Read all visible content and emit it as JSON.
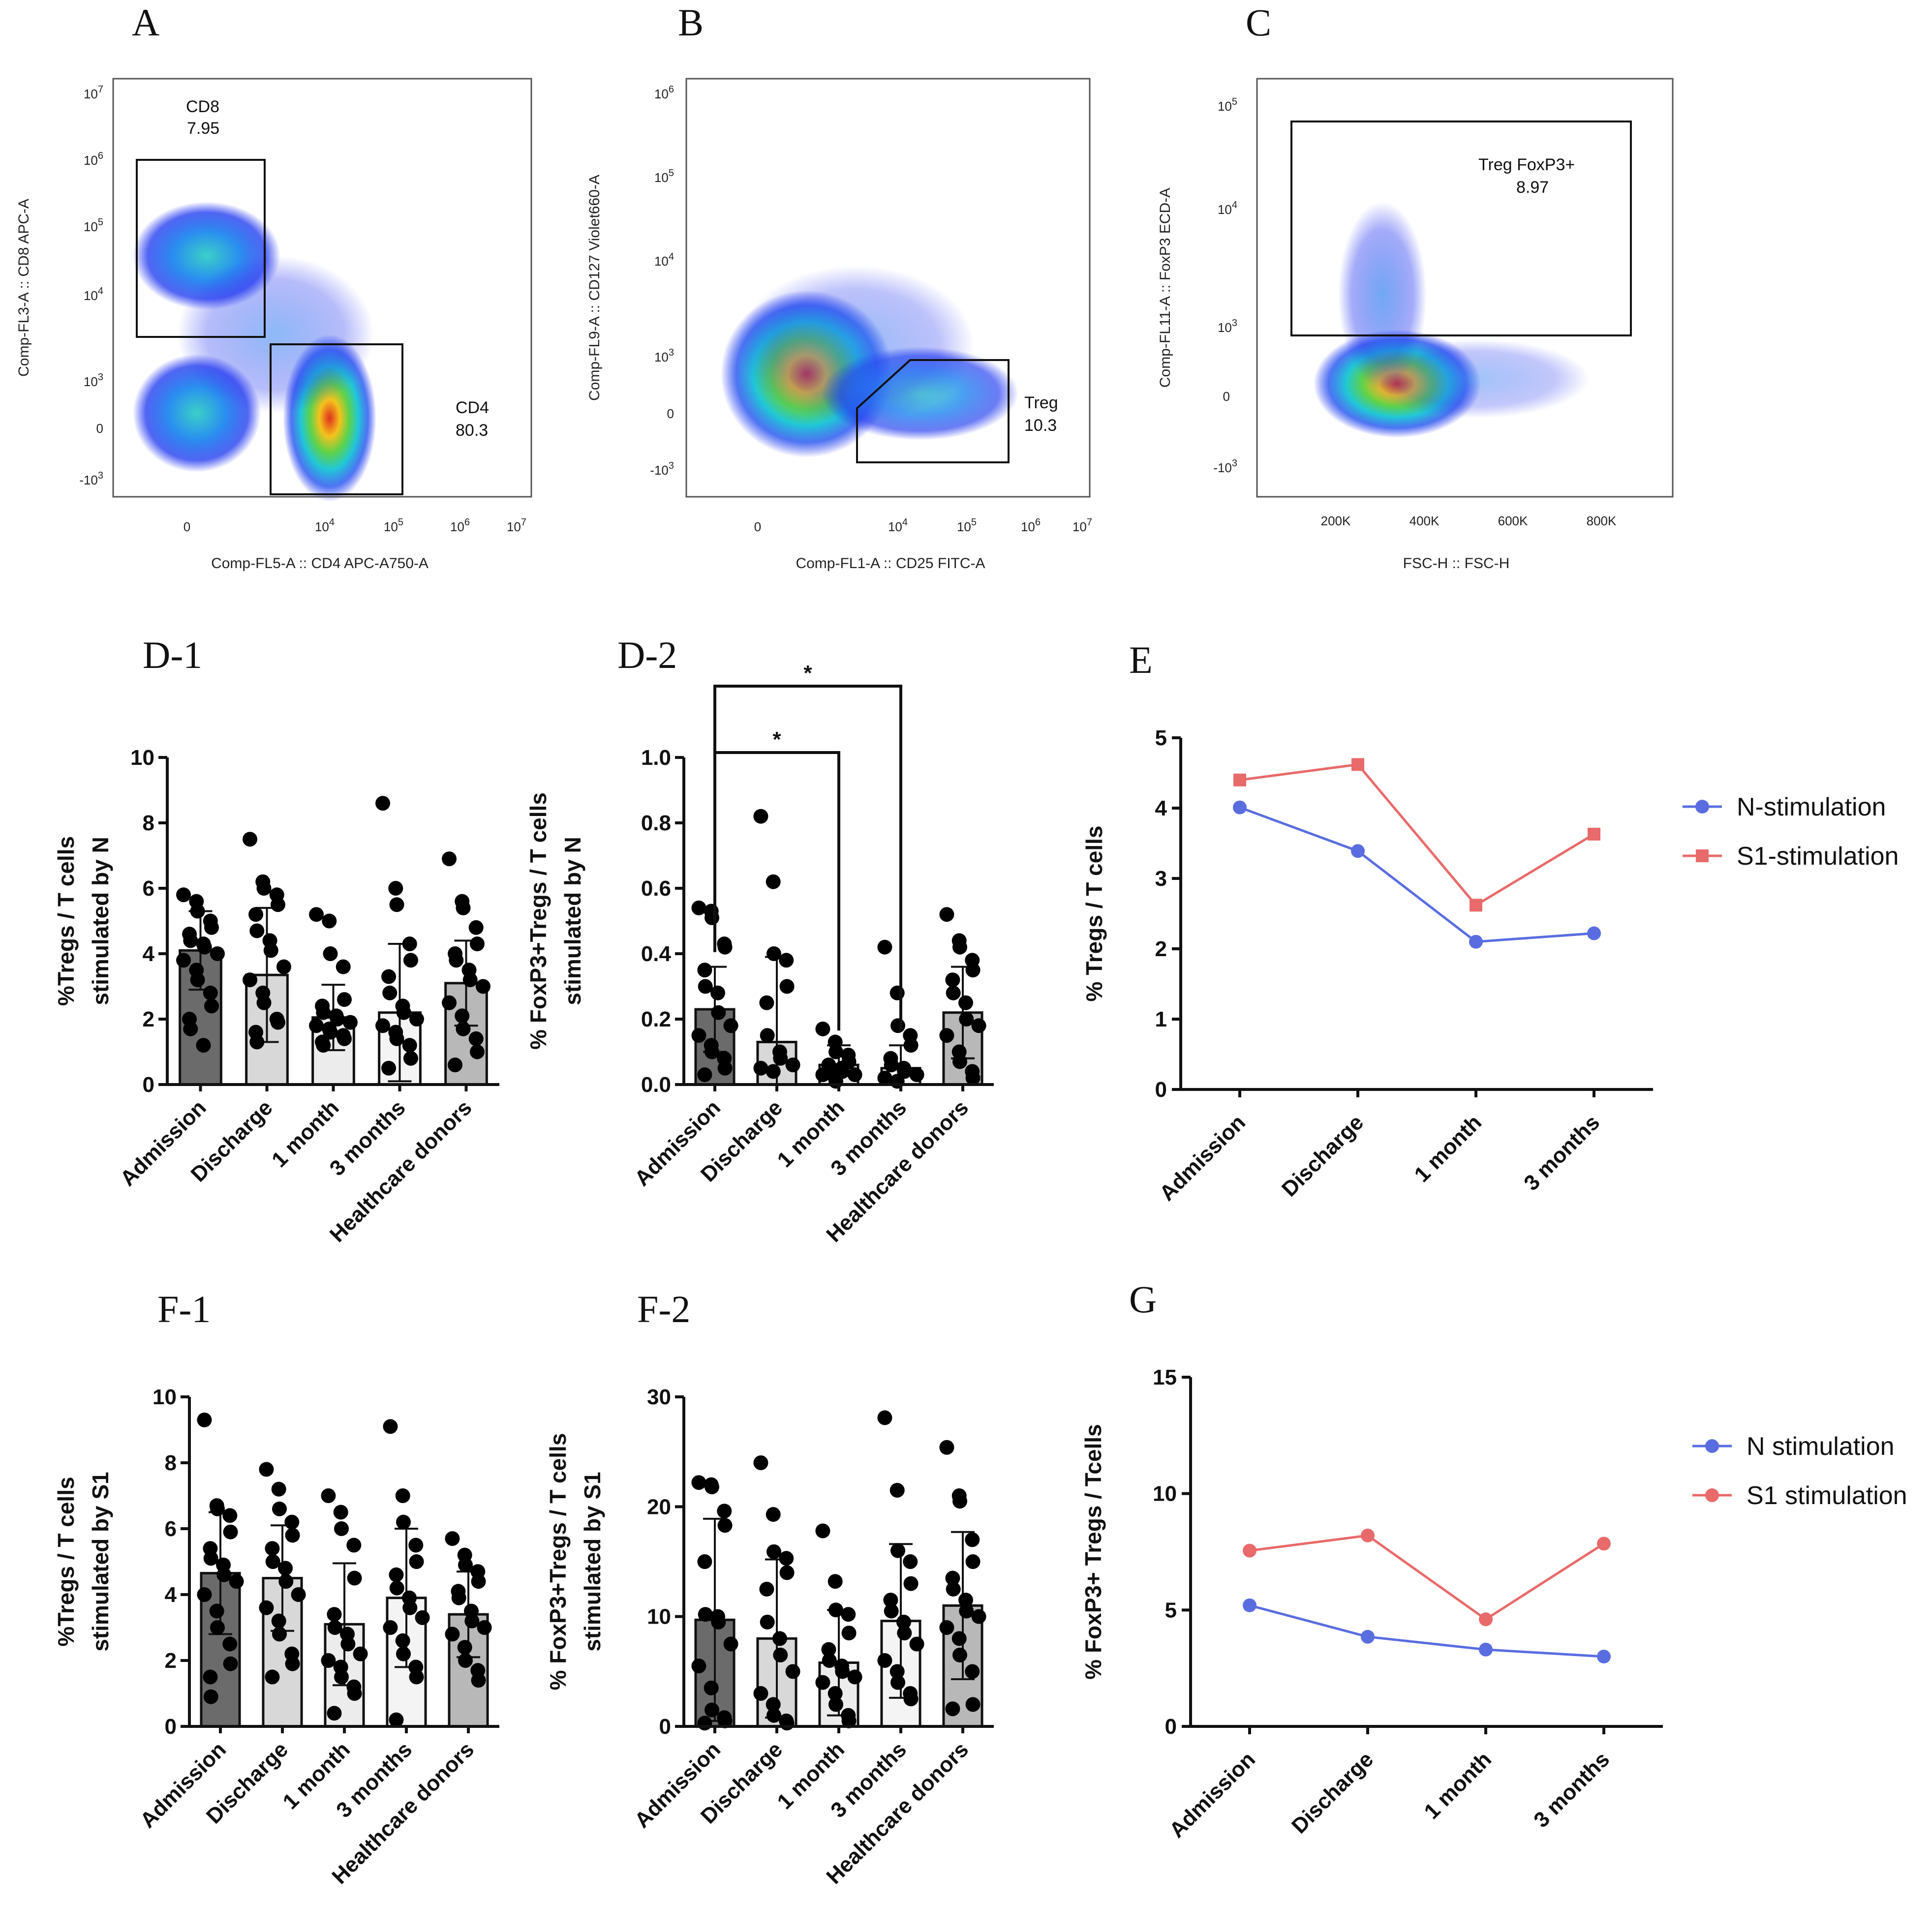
{
  "flow_panels": [
    {
      "id": "A",
      "letter": "A",
      "xlabel": "Comp-FL5-A :: CD4 APC-A750-A",
      "ylabel": "Comp-FL3-A :: CD8 APC-A",
      "xticks": [
        "0",
        "10^4",
        "10^5",
        "10^6",
        "10^7"
      ],
      "yticks": [
        "10^7",
        "10^6",
        "10^5",
        "10^4",
        "10^3",
        "0",
        "-10^3"
      ],
      "gates": [
        {
          "name": "CD8",
          "value": "7.95"
        },
        {
          "name": "CD4",
          "value": "80.3"
        }
      ]
    },
    {
      "id": "B",
      "letter": "B",
      "xlabel": "Comp-FL1-A :: CD25 FITC-A",
      "ylabel": "Comp-FL9-A :: CD127 Violet660-A",
      "xticks": [
        "0",
        "10^4",
        "10^5",
        "10^6",
        "10^7"
      ],
      "yticks": [
        "10^6",
        "10^5",
        "10^4",
        "10^3",
        "0",
        "-10^3"
      ],
      "gates": [
        {
          "name": "Treg",
          "value": "10.3"
        }
      ]
    },
    {
      "id": "C",
      "letter": "C",
      "xlabel": "FSC-H :: FSC-H",
      "ylabel": "Comp-FL11-A :: FoxP3 ECD-A",
      "xticks": [
        "200K",
        "400K",
        "600K",
        "800K"
      ],
      "yticks": [
        "10^5",
        "10^4",
        "10^3",
        "0",
        "-10^3"
      ],
      "gates": [
        {
          "name": "Treg FoxP3+",
          "value": "8.97"
        }
      ]
    }
  ],
  "chart_data": [
    {
      "id": "D-1",
      "type": "bar",
      "title": "D-1",
      "ylabel_lines": [
        "%Tregs / T cells",
        "stimulated by N"
      ],
      "categories": [
        "Admission",
        "Discharge",
        "1 month",
        "3 months",
        "Healthcare donors"
      ],
      "yticks": [
        "0",
        "2",
        "4",
        "6",
        "8",
        "10"
      ],
      "ylim": [
        0,
        10
      ],
      "values": [
        4.1,
        3.35,
        2.05,
        2.2,
        3.1
      ],
      "sd": [
        1.2,
        2.05,
        1.0,
        2.1,
        1.3
      ],
      "bar_colors": [
        "#6b6b6b",
        "#d8d8d8",
        "#ececec",
        "#f4f4f4",
        "#b8b8b8"
      ],
      "points": [
        [
          5.8,
          5.6,
          5.3,
          5.0,
          4.8,
          4.6,
          4.4,
          4.3,
          4.2,
          4.0,
          3.8,
          3.5,
          3.2,
          2.8,
          2.4,
          2.0,
          1.7,
          1.2
        ],
        [
          7.5,
          6.2,
          6.0,
          5.8,
          5.5,
          5.2,
          4.7,
          4.4,
          4.1,
          3.6,
          3.2,
          2.8,
          2.5,
          2.0,
          1.9,
          1.6,
          1.3
        ],
        [
          5.2,
          5.0,
          4.0,
          3.6,
          2.6,
          2.4,
          2.2,
          2.1,
          2.0,
          1.9,
          1.8,
          1.7,
          1.6,
          1.5,
          1.4,
          1.3,
          1.2
        ],
        [
          8.6,
          6.0,
          5.5,
          4.3,
          3.8,
          3.3,
          2.8,
          2.4,
          2.2,
          2.0,
          1.8,
          1.6,
          1.4,
          1.2,
          0.8,
          0.5
        ],
        [
          6.9,
          5.6,
          5.4,
          4.8,
          4.3,
          4.0,
          3.8,
          3.5,
          3.2,
          3.0,
          2.5,
          2.1,
          1.7,
          1.4,
          1.0,
          0.6
        ]
      ]
    },
    {
      "id": "D-2",
      "type": "bar",
      "title": "D-2",
      "ylabel_lines": [
        "% FoxP3+Tregs / T cells",
        "stimulated by N"
      ],
      "categories": [
        "Admission",
        "Discharge",
        "1 month",
        "3 months",
        "Healthcare donors"
      ],
      "yticks": [
        "0.0",
        "0.2",
        "0.4",
        "0.6",
        "0.8",
        "1.0"
      ],
      "ylim": [
        0,
        1.0
      ],
      "values": [
        0.23,
        0.13,
        0.06,
        0.05,
        0.22
      ],
      "sd": [
        0.13,
        0.26,
        0.06,
        0.07,
        0.14
      ],
      "bar_colors": [
        "#6b6b6b",
        "#d8d8d8",
        "#ececec",
        "#f4f4f4",
        "#b8b8b8"
      ],
      "points": [
        [
          0.54,
          0.53,
          0.51,
          0.43,
          0.42,
          0.35,
          0.3,
          0.28,
          0.22,
          0.18,
          0.15,
          0.12,
          0.1,
          0.08,
          0.05,
          0.03
        ],
        [
          0.82,
          0.62,
          0.4,
          0.38,
          0.3,
          0.25,
          0.15,
          0.1,
          0.08,
          0.06,
          0.05,
          0.04
        ],
        [
          0.17,
          0.13,
          0.1,
          0.09,
          0.07,
          0.06,
          0.05,
          0.05,
          0.04,
          0.03,
          0.03,
          0.02,
          0.01
        ],
        [
          0.42,
          0.28,
          0.18,
          0.15,
          0.12,
          0.08,
          0.06,
          0.05,
          0.04,
          0.03,
          0.02,
          0.01
        ],
        [
          0.52,
          0.44,
          0.42,
          0.38,
          0.35,
          0.32,
          0.28,
          0.25,
          0.2,
          0.18,
          0.15,
          0.1,
          0.07,
          0.04,
          0.02
        ]
      ],
      "significance": [
        {
          "from": 0,
          "to": 2,
          "label": "*"
        },
        {
          "from": 0,
          "to": 3,
          "label": "*"
        }
      ]
    },
    {
      "id": "E",
      "type": "line",
      "title": "E",
      "ylabel": "% Tregs / T cells",
      "categories": [
        "Admission",
        "Discharge",
        "1 month",
        "3 months"
      ],
      "yticks": [
        "0",
        "1",
        "2",
        "3",
        "4",
        "5"
      ],
      "ylim": [
        0,
        5
      ],
      "series": [
        {
          "name": "N-stimulation",
          "color": "#5a6de0",
          "marker": "circle",
          "values": [
            4.01,
            3.39,
            2.1,
            2.22
          ]
        },
        {
          "name": "S1-stimulation",
          "color": "#e86a6a",
          "marker": "square",
          "values": [
            4.4,
            4.62,
            2.62,
            3.63
          ]
        }
      ]
    },
    {
      "id": "F-1",
      "type": "bar",
      "title": "F-1",
      "ylabel_lines": [
        "%Tregs / T cells",
        "stimulated by S1"
      ],
      "categories": [
        "Admission",
        "Discharge",
        "1 month",
        "3 months",
        "Healthcare donors"
      ],
      "yticks": [
        "0",
        "2",
        "4",
        "6",
        "8",
        "10"
      ],
      "ylim": [
        0,
        10
      ],
      "values": [
        4.65,
        4.5,
        3.1,
        3.9,
        3.4
      ],
      "sd": [
        1.85,
        1.6,
        1.85,
        2.1,
        1.3
      ],
      "bar_colors": [
        "#6b6b6b",
        "#d8d8d8",
        "#ececec",
        "#f4f4f4",
        "#b8b8b8"
      ],
      "points": [
        [
          9.3,
          6.7,
          6.6,
          6.4,
          5.9,
          5.4,
          5.1,
          4.9,
          4.6,
          4.4,
          4.0,
          3.5,
          3.0,
          2.5,
          1.9,
          1.5,
          0.9
        ],
        [
          7.8,
          7.2,
          6.6,
          6.2,
          5.8,
          5.4,
          5.0,
          4.8,
          4.4,
          4.0,
          3.6,
          3.2,
          2.8,
          2.2,
          1.9,
          1.5
        ],
        [
          7.0,
          6.5,
          6.0,
          5.5,
          4.5,
          3.4,
          3.0,
          2.8,
          2.5,
          2.2,
          2.0,
          1.8,
          1.5,
          1.2,
          1.0,
          0.4
        ],
        [
          9.1,
          7.0,
          6.2,
          5.5,
          5.0,
          4.6,
          4.2,
          3.9,
          3.6,
          3.3,
          3.0,
          2.6,
          2.2,
          1.8,
          1.5,
          0.2
        ],
        [
          5.7,
          5.2,
          4.9,
          4.7,
          4.4,
          4.1,
          3.9,
          3.5,
          3.2,
          3.0,
          2.8,
          2.4,
          2.0,
          1.7,
          1.4
        ]
      ]
    },
    {
      "id": "F-2",
      "type": "bar",
      "title": "F-2",
      "ylabel_lines": [
        "% FoxP3+Tregs / T cells",
        "stimulated by S1"
      ],
      "categories": [
        "Admission",
        "Discharge",
        "1 month",
        "3 months",
        "Healthcare donors"
      ],
      "yticks": [
        "0",
        "10",
        "20",
        "30"
      ],
      "ylim": [
        0,
        30
      ],
      "values": [
        9.7,
        8.0,
        5.8,
        9.6,
        11.0
      ],
      "sd": [
        9.2,
        7.2,
        4.8,
        7.0,
        6.7
      ],
      "bar_colors": [
        "#6b6b6b",
        "#d8d8d8",
        "#ececec",
        "#f4f4f4",
        "#b8b8b8"
      ],
      "points": [
        [
          22.2,
          22.0,
          21.8,
          19.6,
          18.3,
          15.0,
          10.2,
          10.0,
          9.5,
          7.5,
          5.5,
          3.5,
          1.5,
          0.8,
          0.5,
          0.3
        ],
        [
          24.0,
          19.3,
          15.9,
          15.3,
          14.0,
          12.5,
          9.5,
          8.0,
          6.5,
          5.0,
          3.0,
          2.0,
          1.0,
          0.5,
          0.3
        ],
        [
          17.8,
          13.2,
          10.6,
          10.2,
          8.5,
          7.0,
          6.0,
          5.5,
          5.0,
          4.5,
          4.0,
          3.0,
          2.0,
          1.0,
          0.5
        ],
        [
          28.1,
          21.5,
          16.0,
          15.0,
          13.0,
          11.5,
          10.5,
          9.5,
          8.5,
          7.5,
          6.0,
          5.0,
          4.0,
          3.0,
          2.5
        ],
        [
          25.4,
          21.0,
          20.5,
          17.0,
          15.0,
          13.5,
          12.5,
          11.5,
          10.5,
          10.0,
          9.0,
          8.0,
          6.5,
          5.0,
          2.0,
          1.6
        ]
      ]
    },
    {
      "id": "G",
      "type": "line",
      "title": "G",
      "ylabel": "% FoxP3+ Tregs / Tcells",
      "categories": [
        "Admission",
        "Discharge",
        "1 month",
        "3 months"
      ],
      "yticks": [
        "0",
        "5",
        "10",
        "15"
      ],
      "ylim": [
        0,
        15
      ],
      "series": [
        {
          "name": "N stimulation",
          "color": "#5a6de0",
          "marker": "circle",
          "values": [
            5.2,
            3.85,
            3.3,
            3.0
          ]
        },
        {
          "name": "S1 stimulation",
          "color": "#e86a6a",
          "marker": "circle",
          "values": [
            7.55,
            8.2,
            4.6,
            7.85
          ]
        }
      ]
    }
  ]
}
